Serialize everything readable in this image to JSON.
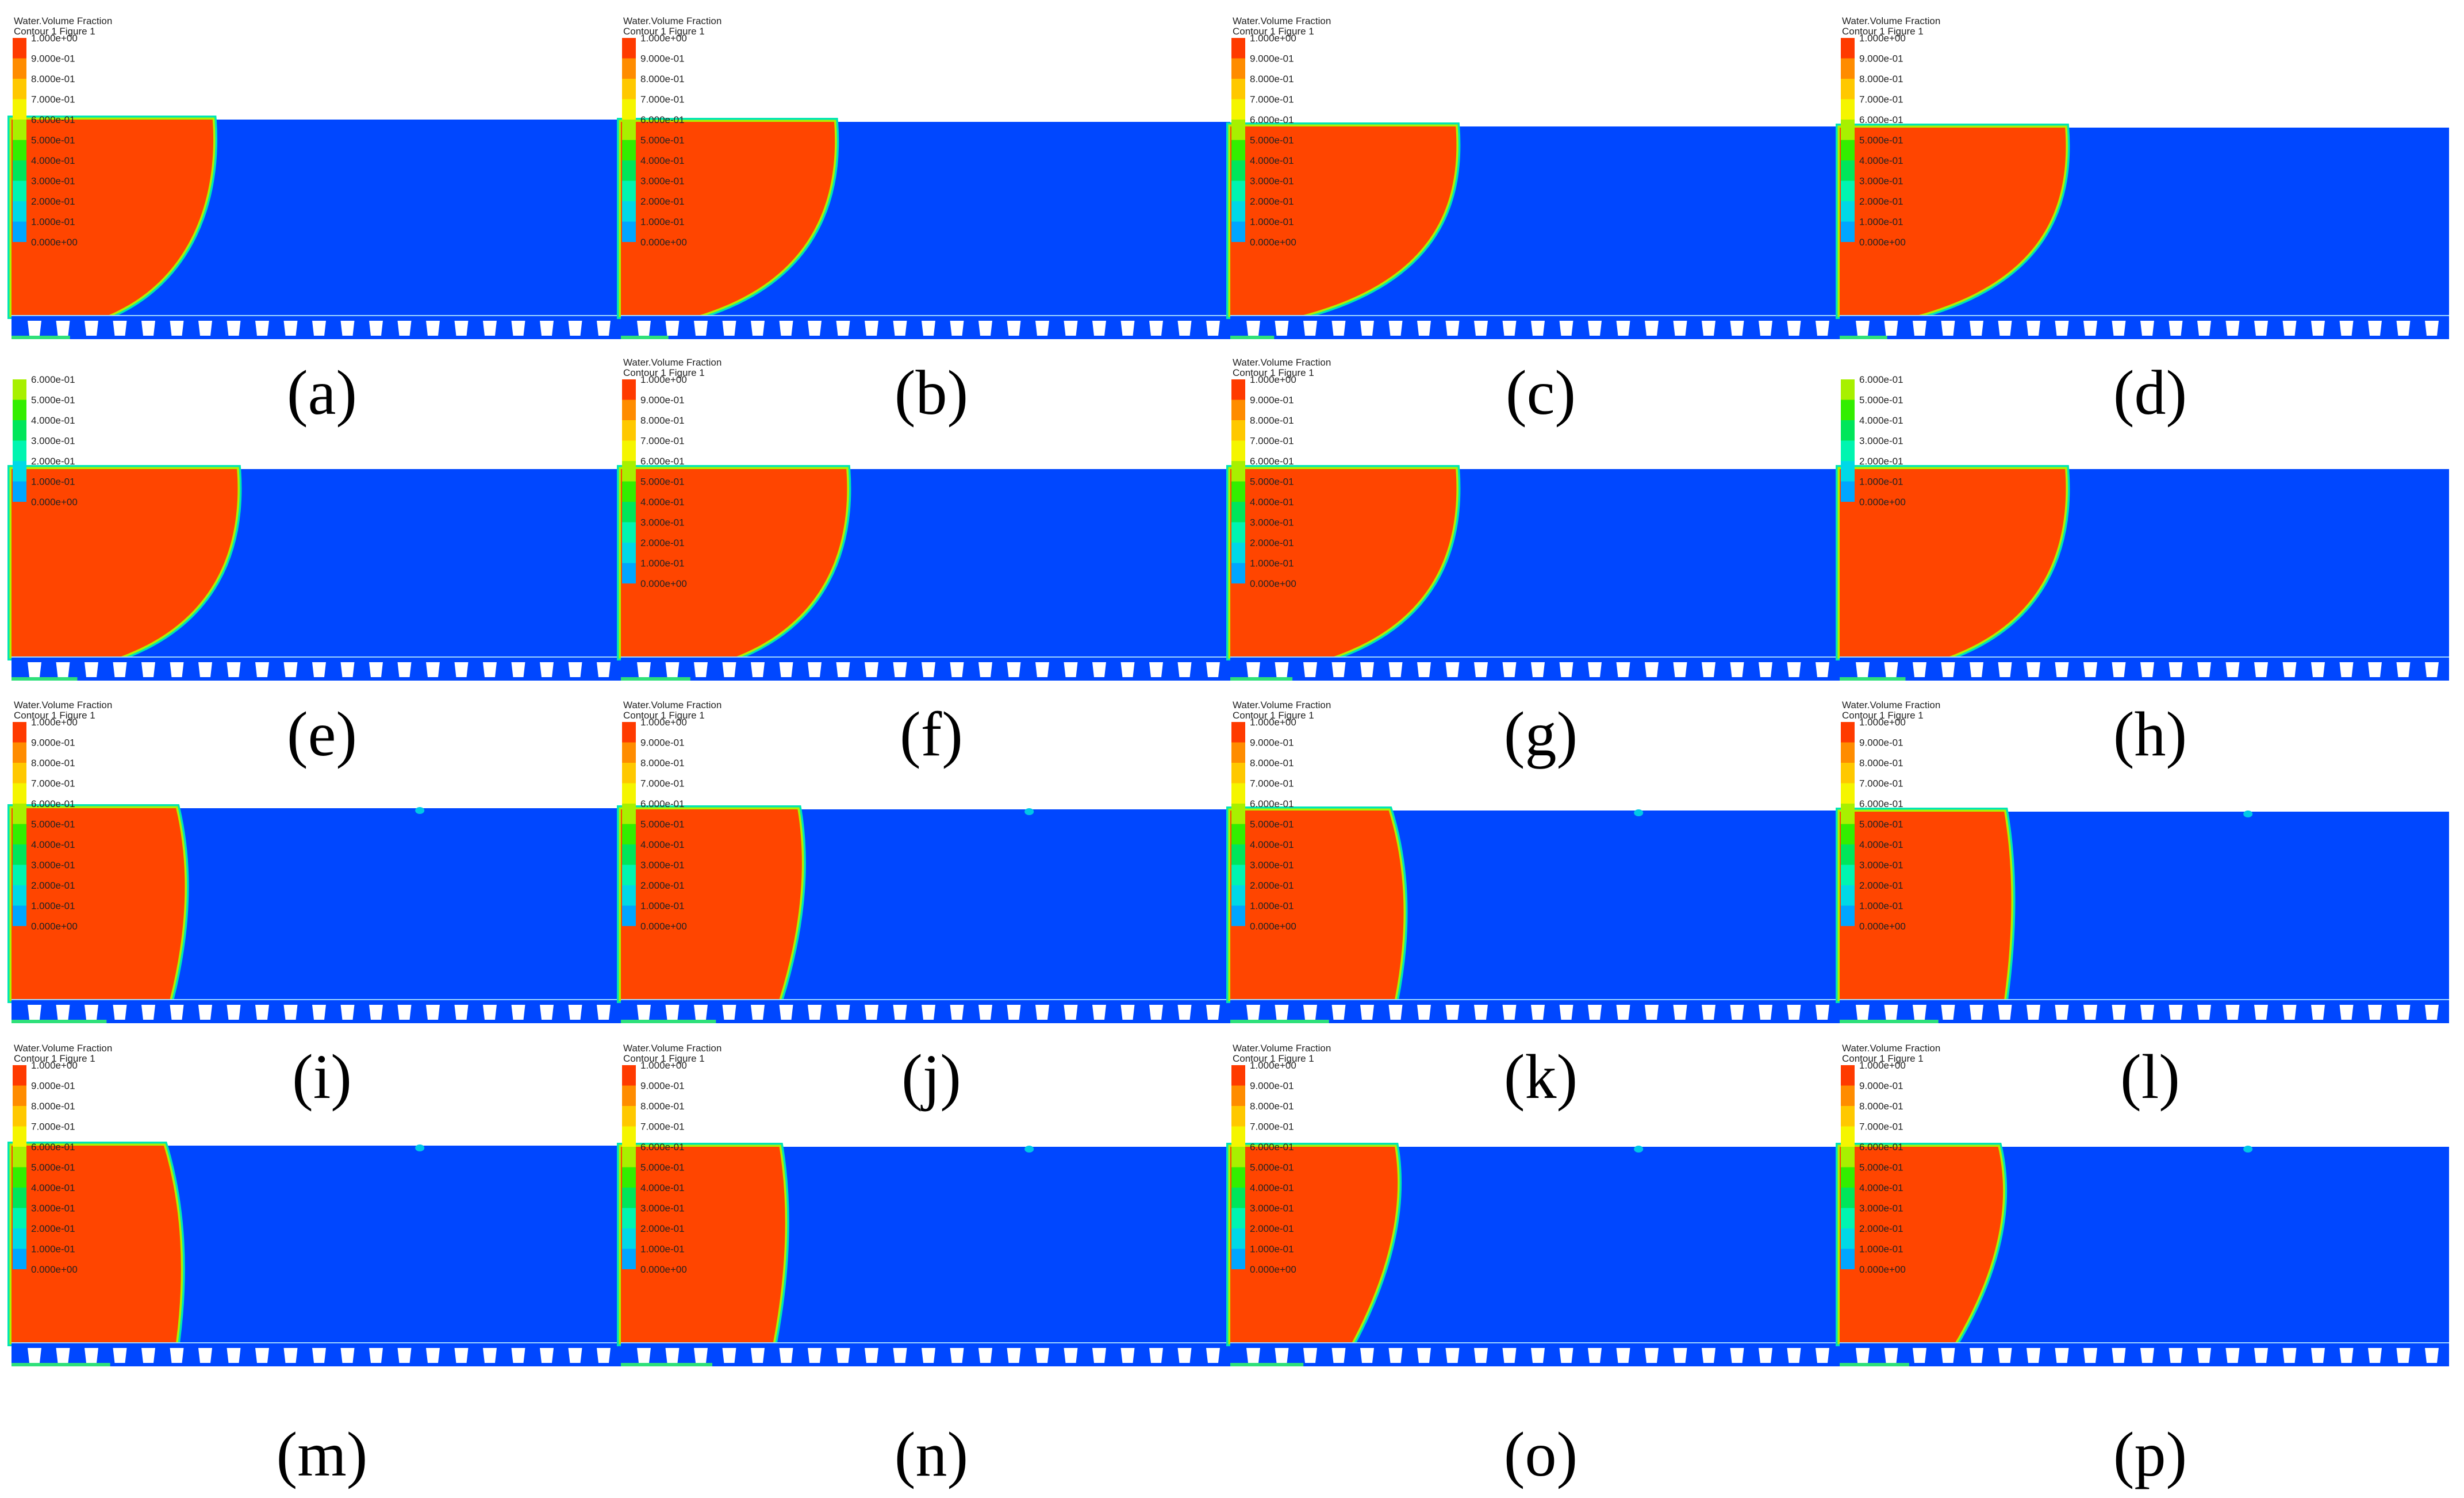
{
  "figure": {
    "header_title": "Water.Volume Fraction",
    "header_subtitle": "Contour 1 Figure 1",
    "colors": {
      "water": "#ff4500",
      "air": "#0047ff",
      "legend_scale": [
        "#0a32ff",
        "#00a6ff",
        "#00d9e6",
        "#00f5b0",
        "#00e65a",
        "#33ee00",
        "#a8f000",
        "#f5f500",
        "#ffc800",
        "#ff8c00",
        "#ff3a00"
      ]
    },
    "legend_full": [
      "1.000e+00",
      "9.000e-01",
      "8.000e-01",
      "7.000e-01",
      "6.000e-01",
      "5.000e-01",
      "4.000e-01",
      "3.000e-01",
      "2.000e-01",
      "1.000e-01",
      "0.000e+00"
    ],
    "legend_partial": [
      "6.000e-01",
      "5.000e-01",
      "4.000e-01",
      "3.000e-01",
      "2.000e-01",
      "1.000e-01",
      "0.000e+00"
    ],
    "panels": [
      {
        "label": "(a)",
        "header": true,
        "legend": "full",
        "surface": 0.5,
        "front": "curved",
        "front_top": 0.33,
        "front_bottom": 0.16
      },
      {
        "label": "(b)",
        "header": true,
        "legend": "full",
        "surface": 0.48,
        "front": "curved",
        "front_top": 0.35,
        "front_bottom": 0.13
      },
      {
        "label": "(c)",
        "header": true,
        "legend": "full",
        "surface": 0.44,
        "front": "curved",
        "front_top": 0.37,
        "front_bottom": 0.12
      },
      {
        "label": "(d)",
        "header": true,
        "legend": "full",
        "surface": 0.43,
        "front": "curved",
        "front_top": 0.37,
        "front_bottom": 0.13
      },
      {
        "label": "(e)",
        "header": false,
        "legend": "partial",
        "surface": 0.43,
        "front": "curved",
        "front_top": 0.37,
        "front_bottom": 0.18
      },
      {
        "label": "(f)",
        "header": true,
        "legend": "full",
        "surface": 0.43,
        "front": "curved",
        "front_top": 0.37,
        "front_bottom": 0.19
      },
      {
        "label": "(g)",
        "header": true,
        "legend": "full",
        "surface": 0.43,
        "front": "curved",
        "front_top": 0.37,
        "front_bottom": 0.17
      },
      {
        "label": "(h)",
        "header": false,
        "legend": "partial",
        "surface": 0.43,
        "front": "curved",
        "front_top": 0.37,
        "front_bottom": 0.18
      },
      {
        "label": "(i)",
        "header": true,
        "legend": "full",
        "surface": 0.46,
        "front": "bulge",
        "front_top": 0.27,
        "front_mid": 0.29,
        "front_bottom": 0.26,
        "droplet": 0.67
      },
      {
        "label": "(j)",
        "header": true,
        "legend": "full",
        "surface": 0.45,
        "front": "bulge",
        "front_top": 0.29,
        "front_mid": 0.3,
        "front_bottom": 0.26,
        "droplet": 0.67
      },
      {
        "label": "(k)",
        "header": true,
        "legend": "full",
        "surface": 0.44,
        "front": "bulge",
        "front_top": 0.26,
        "front_mid": 0.29,
        "front_bottom": 0.27,
        "droplet": 0.67
      },
      {
        "label": "(l)",
        "header": true,
        "legend": "full",
        "surface": 0.43,
        "front": "bulge",
        "front_top": 0.27,
        "front_mid": 0.28,
        "front_bottom": 0.27,
        "droplet": 0.67
      },
      {
        "label": "(m)",
        "header": true,
        "legend": "full",
        "surface": 0.51,
        "front": "bulge",
        "front_top": 0.25,
        "front_mid": 0.28,
        "front_bottom": 0.27,
        "droplet": 0.67
      },
      {
        "label": "(n)",
        "header": true,
        "legend": "full",
        "surface": 0.5,
        "front": "bulge",
        "front_top": 0.26,
        "front_mid": 0.27,
        "front_bottom": 0.25,
        "droplet": 0.67
      },
      {
        "label": "(o)",
        "header": true,
        "legend": "full",
        "surface": 0.5,
        "front": "bulge",
        "front_top": 0.27,
        "front_mid": 0.28,
        "front_bottom": 0.2,
        "droplet": 0.67
      },
      {
        "label": "(p)",
        "header": true,
        "legend": "full",
        "surface": 0.5,
        "front": "bulge",
        "front_top": 0.26,
        "front_mid": 0.28,
        "front_bottom": 0.19,
        "droplet": 0.67
      }
    ]
  }
}
